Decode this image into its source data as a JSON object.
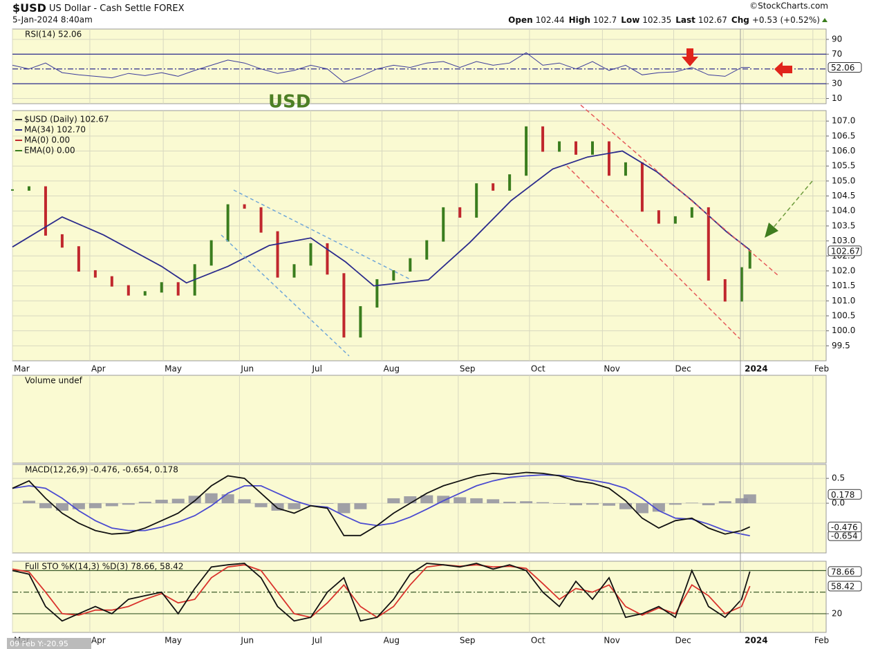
{
  "header": {
    "symbol": "$USD",
    "name": "US Dollar - Cash Settle FOREX",
    "date": "5-Jan-2024 8:40am",
    "source": "©StockCharts.com",
    "quote": [
      {
        "label": "Open",
        "value": 102.44
      },
      {
        "label": "High",
        "value": 102.7
      },
      {
        "label": "Low",
        "value": 102.35
      },
      {
        "label": "Last",
        "value": 102.67
      },
      {
        "label": "Chg",
        "value": "+0.53 (+0.52%)"
      }
    ],
    "annotation": "USD",
    "crosshair": "09 Feb Y:-20.95"
  },
  "chart_data": [
    {
      "type": "line",
      "title": "RSI(14) 52.06",
      "ylim": [
        3,
        104
      ],
      "yticks": [
        10,
        30,
        70,
        90
      ],
      "reference_lines": [
        30,
        50,
        70
      ],
      "series": [
        {
          "name": "RSI(14)",
          "color": "#3b3b9a",
          "x": [
            0,
            1,
            2,
            3,
            4,
            5,
            6,
            7,
            8,
            9,
            10,
            11,
            12,
            13,
            14,
            15,
            16,
            17,
            18,
            19,
            20,
            21,
            22,
            23,
            24,
            25,
            26,
            27,
            28,
            29,
            30,
            31,
            32,
            33,
            34,
            35,
            36,
            37,
            38,
            39,
            40,
            41,
            42,
            43,
            44,
            44.5
          ],
          "values": [
            55,
            50,
            58,
            45,
            42,
            40,
            38,
            44,
            41,
            45,
            40,
            48,
            55,
            62,
            58,
            50,
            44,
            48,
            55,
            50,
            32,
            40,
            50,
            55,
            52,
            58,
            60,
            52,
            60,
            55,
            58,
            72,
            55,
            58,
            50,
            60,
            48,
            55,
            42,
            45,
            46,
            52,
            42,
            40,
            52,
            52.06
          ]
        }
      ]
    },
    {
      "type": "line",
      "legend": [
        {
          "text": "$USD (Daily) 102.67",
          "color": "#333333"
        },
        {
          "text": "MA(34) 102.70",
          "color": "#2b2b8c"
        },
        {
          "text": "MA(0) 0.00",
          "color": "#c0272d"
        },
        {
          "text": "EMA(0) 0.00",
          "color": "#3a7d1e"
        }
      ],
      "xlim": [
        0,
        49.1
      ],
      "xticks": [
        {
          "value": 0,
          "label": "Mar"
        },
        {
          "value": 4.67,
          "label": "Apr"
        },
        {
          "value": 9.1,
          "label": "May"
        },
        {
          "value": 13.7,
          "label": "Jun"
        },
        {
          "value": 18.0,
          "label": "Jul"
        },
        {
          "value": 22.3,
          "label": "Aug"
        },
        {
          "value": 26.9,
          "label": "Sep"
        },
        {
          "value": 31.2,
          "label": "Oct"
        },
        {
          "value": 35.6,
          "label": "Nov"
        },
        {
          "value": 39.9,
          "label": "Dec"
        },
        {
          "value": 44.1,
          "label": "2024"
        },
        {
          "value": 48.3,
          "label": "Feb"
        }
      ],
      "ylim": [
        99.0,
        107.35
      ],
      "yticks": [
        99.5,
        {
          "value": 100,
          "label": "100.0"
        },
        100.5,
        {
          "value": 101,
          "label": "101.0"
        },
        101.5,
        {
          "value": 102,
          "label": "102.0"
        },
        102.5,
        {
          "value": 103,
          "label": "103.0"
        },
        103.5,
        {
          "value": 104,
          "label": "104.0"
        },
        104.5,
        {
          "value": 105,
          "label": "105.0"
        },
        105.5,
        {
          "value": 106,
          "label": "106.0"
        },
        106.5,
        {
          "value": 107,
          "label": "107.0"
        }
      ],
      "series": [
        {
          "name": "$USD",
          "style": "bars",
          "up_color": "#3a7d1e",
          "down_color": "#c0272d",
          "color": "#333333",
          "x": [
            0,
            1,
            2,
            3,
            4,
            5,
            6,
            7,
            8,
            9,
            10,
            11,
            12,
            13,
            14,
            15,
            16,
            17,
            18,
            19,
            20,
            21,
            22,
            23,
            24,
            25,
            26,
            27,
            28,
            29,
            30,
            31,
            32,
            33,
            34,
            35,
            36,
            37,
            38,
            39,
            40,
            41,
            42,
            43,
            44,
            44.5
          ],
          "values": [
            104.7,
            104.8,
            103.2,
            102.8,
            102.0,
            101.8,
            101.5,
            101.2,
            101.3,
            101.6,
            101.2,
            102.2,
            103.0,
            104.2,
            104.1,
            103.3,
            101.8,
            102.2,
            102.9,
            101.9,
            99.8,
            100.8,
            101.7,
            102.0,
            102.4,
            103.0,
            104.1,
            103.8,
            104.9,
            104.7,
            105.2,
            106.8,
            106.0,
            106.3,
            105.9,
            106.3,
            105.2,
            105.6,
            104.0,
            103.6,
            103.8,
            104.1,
            101.7,
            101.0,
            102.1,
            102.67
          ]
        },
        {
          "name": "MA(34)",
          "color": "#2b2b8c",
          "tag": false,
          "x": [
            0,
            3,
            5.5,
            9.0,
            10.5,
            13.0,
            15.5,
            18.0,
            20.1,
            21.8,
            25.1,
            27.6,
            30.1,
            32.6,
            34.7,
            36.8,
            38.9,
            41.0,
            43.1,
            44.5
          ],
          "values": [
            102.8,
            103.8,
            103.2,
            102.15,
            101.6,
            102.15,
            102.85,
            103.1,
            102.3,
            101.5,
            101.7,
            102.95,
            104.35,
            105.4,
            105.8,
            106.0,
            105.3,
            104.35,
            103.3,
            102.7
          ]
        }
      ]
    },
    {
      "type": "bar",
      "title": "Volume undef"
    },
    {
      "type": "line",
      "title": "MACD(12,26,9) -0.476, -0.654, 0.178",
      "ylim": [
        -1.0,
        0.78
      ],
      "yticks": [
        0.5,
        {
          "value": 0,
          "label": "0.0"
        }
      ],
      "series": [
        {
          "name": "Histogram",
          "style": "histogram",
          "color": "#8f8f9f",
          "x": [
            0,
            1,
            2,
            3,
            4,
            5,
            6,
            7,
            8,
            9,
            10,
            11,
            12,
            13,
            14,
            15,
            16,
            17,
            18,
            19,
            20,
            21,
            22,
            23,
            24,
            25,
            26,
            27,
            28,
            29,
            30,
            31,
            32,
            33,
            34,
            35,
            36,
            37,
            38,
            39,
            40,
            41,
            42,
            43,
            44,
            44.5
          ],
          "values": [
            0,
            0.05,
            -0.1,
            -0.15,
            -0.12,
            -0.1,
            -0.06,
            -0.03,
            0.03,
            0.07,
            0.09,
            0.15,
            0.2,
            0.18,
            0.08,
            -0.08,
            -0.15,
            -0.12,
            0,
            -0.01,
            -0.2,
            -0.12,
            0,
            0.1,
            0.14,
            0.16,
            0.15,
            0.12,
            0.1,
            0.08,
            0.03,
            0.04,
            0.02,
            -0.01,
            -0.04,
            -0.03,
            -0.05,
            -0.12,
            -0.2,
            -0.17,
            -0.03,
            0.01,
            -0.04,
            0.04,
            0.1,
            0.178
          ]
        },
        {
          "name": "Signal",
          "color": "#4a4ad0",
          "x": [
            0,
            1,
            2,
            3,
            4,
            5,
            6,
            7,
            8,
            9,
            10,
            11,
            12,
            13,
            14,
            15,
            16,
            17,
            18,
            19,
            20,
            21,
            22,
            23,
            24,
            25,
            26,
            27,
            28,
            29,
            30,
            31,
            32,
            33,
            34,
            35,
            36,
            37,
            38,
            39,
            40,
            41,
            42,
            43,
            44,
            44.5
          ],
          "values": [
            0.3,
            0.35,
            0.3,
            0.1,
            -0.15,
            -0.35,
            -0.5,
            -0.55,
            -0.55,
            -0.48,
            -0.38,
            -0.25,
            -0.05,
            0.2,
            0.35,
            0.35,
            0.2,
            0.05,
            -0.05,
            -0.08,
            -0.25,
            -0.4,
            -0.45,
            -0.4,
            -0.28,
            -0.12,
            0.05,
            0.2,
            0.35,
            0.45,
            0.52,
            0.55,
            0.57,
            0.56,
            0.52,
            0.46,
            0.4,
            0.3,
            0.1,
            -0.15,
            -0.3,
            -0.32,
            -0.42,
            -0.55,
            -0.62,
            -0.654
          ]
        },
        {
          "name": "MACD",
          "color": "#111111",
          "x": [
            0,
            1,
            2,
            3,
            4,
            5,
            6,
            7,
            8,
            9,
            10,
            11,
            12,
            13,
            14,
            15,
            16,
            17,
            18,
            19,
            20,
            21,
            22,
            23,
            24,
            25,
            26,
            27,
            28,
            29,
            30,
            31,
            32,
            33,
            34,
            35,
            36,
            37,
            38,
            39,
            40,
            41,
            42,
            43,
            44,
            44.5
          ],
          "values": [
            0.3,
            0.45,
            0.1,
            -0.2,
            -0.4,
            -0.55,
            -0.62,
            -0.6,
            -0.5,
            -0.35,
            -0.2,
            0.05,
            0.35,
            0.55,
            0.5,
            0.2,
            -0.1,
            -0.2,
            -0.05,
            -0.1,
            -0.65,
            -0.65,
            -0.45,
            -0.2,
            0.0,
            0.2,
            0.35,
            0.45,
            0.55,
            0.6,
            0.58,
            0.62,
            0.6,
            0.55,
            0.45,
            0.4,
            0.3,
            0.05,
            -0.3,
            -0.5,
            -0.35,
            -0.3,
            -0.5,
            -0.62,
            -0.55,
            -0.476
          ]
        }
      ]
    },
    {
      "type": "line",
      "title": "Full STO %K(14,3) %D(3) 78.66, 58.42",
      "xlim": [
        0,
        49.1
      ],
      "xticks": [
        {
          "value": 0,
          "label": "Mar"
        },
        {
          "value": 4.67,
          "label": "Apr"
        },
        {
          "value": 9.1,
          "label": "May"
        },
        {
          "value": 13.7,
          "label": "Jun"
        },
        {
          "value": 18.0,
          "label": "Jul"
        },
        {
          "value": 22.3,
          "label": "Aug"
        },
        {
          "value": 26.9,
          "label": "Sep"
        },
        {
          "value": 31.2,
          "label": "Oct"
        },
        {
          "value": 35.6,
          "label": "Nov"
        },
        {
          "value": 39.9,
          "label": "Dec"
        },
        {
          "value": 44.1,
          "label": "2024"
        },
        {
          "value": 48.3,
          "label": "Feb"
        }
      ],
      "ylim": [
        -6,
        93
      ],
      "yticks": [
        20
      ],
      "reference_lines": [
        20,
        50,
        80
      ],
      "series": [
        {
          "name": "%D",
          "color": "#d9322c",
          "x": [
            0,
            1,
            2,
            3,
            4,
            5,
            6,
            7,
            8,
            9,
            10,
            11,
            12,
            13,
            14,
            15,
            16,
            17,
            18,
            19,
            20,
            21,
            22,
            23,
            24,
            25,
            26,
            27,
            28,
            29,
            30,
            31,
            32,
            33,
            34,
            35,
            36,
            37,
            38,
            39,
            40,
            41,
            42,
            43,
            44,
            44.5
          ],
          "values": [
            82,
            78,
            50,
            20,
            18,
            25,
            25,
            30,
            40,
            48,
            35,
            40,
            70,
            85,
            88,
            80,
            50,
            20,
            15,
            35,
            60,
            30,
            15,
            30,
            60,
            85,
            88,
            86,
            88,
            85,
            86,
            83,
            62,
            40,
            55,
            50,
            60,
            30,
            18,
            28,
            20,
            60,
            45,
            20,
            30,
            58.42
          ]
        },
        {
          "name": "%K",
          "color": "#111111",
          "x": [
            0,
            1,
            2,
            3,
            4,
            5,
            6,
            7,
            8,
            9,
            10,
            11,
            12,
            13,
            14,
            15,
            16,
            17,
            18,
            19,
            20,
            21,
            22,
            23,
            24,
            25,
            26,
            27,
            28,
            29,
            30,
            31,
            32,
            33,
            34,
            35,
            36,
            37,
            38,
            39,
            40,
            41,
            42,
            43,
            44,
            44.5
          ],
          "values": [
            80,
            75,
            30,
            10,
            20,
            30,
            20,
            40,
            45,
            50,
            20,
            55,
            85,
            88,
            90,
            70,
            30,
            10,
            15,
            50,
            70,
            10,
            15,
            40,
            75,
            90,
            88,
            85,
            90,
            82,
            88,
            80,
            50,
            30,
            65,
            40,
            70,
            15,
            20,
            30,
            15,
            80,
            30,
            15,
            40,
            78.66
          ]
        }
      ]
    }
  ]
}
